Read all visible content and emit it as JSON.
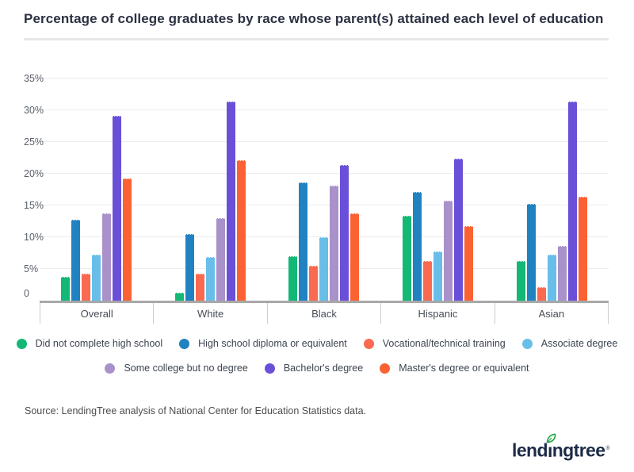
{
  "title": "Percentage of college graduates by race whose parent(s) attained each level of education",
  "chart_data": {
    "type": "bar",
    "title": "Percentage of college graduates by race whose parent(s) attained each level of education",
    "categories": [
      "Overall",
      "White",
      "Black",
      "Hispanic",
      "Asian"
    ],
    "series": [
      {
        "name": "Did not complete high school",
        "color": "#13b877",
        "values": [
          3.7,
          1.2,
          7.0,
          13.4,
          6.2
        ]
      },
      {
        "name": "High school diploma or equivalent",
        "color": "#2182c1",
        "values": [
          12.8,
          10.5,
          18.6,
          17.1,
          15.3
        ]
      },
      {
        "name": "Vocational/technical training",
        "color": "#fa6a50",
        "values": [
          4.2,
          4.2,
          5.5,
          6.2,
          2.1
        ]
      },
      {
        "name": "Associate degree",
        "color": "#68bee9",
        "values": [
          7.3,
          6.9,
          10.0,
          7.8,
          7.3
        ]
      },
      {
        "name": "Some college but no degree",
        "color": "#a991c9",
        "values": [
          13.7,
          13.0,
          18.1,
          15.8,
          8.6
        ]
      },
      {
        "name": "Bachelor's degree",
        "color": "#6a50d8",
        "values": [
          29.1,
          31.4,
          21.4,
          22.4,
          31.4
        ]
      },
      {
        "name": "Master's degree or equivalent",
        "color": "#fb6233",
        "values": [
          19.2,
          22.1,
          13.8,
          11.8,
          16.4
        ]
      }
    ],
    "xlabel": "",
    "ylabel": "",
    "ylim": [
      0,
      37
    ],
    "ytick_step": 5,
    "yticks": [
      "0",
      "5%",
      "10%",
      "15%",
      "20%",
      "25%",
      "30%",
      "35%"
    ],
    "grid": true,
    "legend_position": "bottom",
    "legend_rows": [
      [
        0,
        1,
        2,
        3
      ],
      [
        4,
        5,
        6
      ]
    ]
  },
  "colors": {
    "axis_line": "#a8a8a8",
    "gridline": "#ededed",
    "tick": "#cccccc",
    "title_text": "#2b3142",
    "logo_navy": "#1d2b47",
    "leaf_green": "#2aa84a"
  },
  "source": "Source: LendingTree analysis of National Center for Education Statistics data.",
  "logo": {
    "brand": "lendingtree",
    "part1": "lend",
    "dotless_i": "ı",
    "part2": "ngtree",
    "mark": "®"
  }
}
